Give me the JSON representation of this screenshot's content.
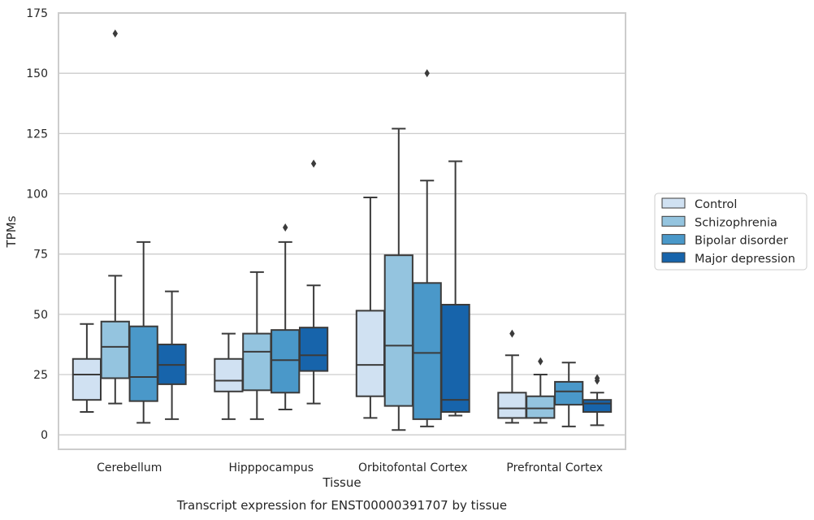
{
  "chart_data": {
    "type": "boxplot",
    "title": "Transcript expression for ENST00000391707 by tissue",
    "xlabel": "Tissue",
    "ylabel": "TPMs",
    "ylim": [
      -6,
      175
    ],
    "yticks": [
      0,
      25,
      50,
      75,
      100,
      125,
      150,
      175
    ],
    "categories": [
      "Cerebellum",
      "Hipppocampus",
      "Orbitofontal Cortex",
      "Prefrontal Cortex"
    ],
    "grid": "horizontal",
    "legend_position": "right",
    "colors": {
      "series": [
        "#d0e1f2",
        "#94c4df",
        "#4a98c9",
        "#1764ab"
      ],
      "edge": "#3b3b3b",
      "grid": "#cccccc",
      "frame": "#cccccc"
    },
    "series": [
      {
        "name": "Control",
        "boxes": [
          {
            "whislo": 9.5,
            "q1": 14.5,
            "med": 25,
            "q3": 31.5,
            "whishi": 46,
            "fliers": []
          },
          {
            "whislo": 6.5,
            "q1": 18,
            "med": 22.5,
            "q3": 31.5,
            "whishi": 42,
            "fliers": []
          },
          {
            "whislo": 7,
            "q1": 16,
            "med": 29,
            "q3": 51.5,
            "whishi": 98.5,
            "fliers": []
          },
          {
            "whislo": 5,
            "q1": 7,
            "med": 11,
            "q3": 17.5,
            "whishi": 33,
            "fliers": [
              42
            ]
          }
        ]
      },
      {
        "name": "Schizophrenia",
        "boxes": [
          {
            "whislo": 13,
            "q1": 23.5,
            "med": 36.5,
            "q3": 47,
            "whishi": 66,
            "fliers": [
              166.5
            ]
          },
          {
            "whislo": 6.5,
            "q1": 18.5,
            "med": 34.5,
            "q3": 42,
            "whishi": 67.5,
            "fliers": []
          },
          {
            "whislo": 2,
            "q1": 12,
            "med": 37,
            "q3": 74.5,
            "whishi": 127,
            "fliers": []
          },
          {
            "whislo": 5,
            "q1": 7,
            "med": 11,
            "q3": 16,
            "whishi": 25,
            "fliers": [
              30.5
            ]
          }
        ]
      },
      {
        "name": "Bipolar disorder",
        "boxes": [
          {
            "whislo": 5,
            "q1": 14,
            "med": 24,
            "q3": 45,
            "whishi": 80,
            "fliers": []
          },
          {
            "whislo": 10.5,
            "q1": 17.5,
            "med": 31,
            "q3": 43.5,
            "whishi": 80,
            "fliers": [
              86
            ]
          },
          {
            "whislo": 3.5,
            "q1": 6.5,
            "med": 34,
            "q3": 63,
            "whishi": 105.5,
            "fliers": [
              150
            ]
          },
          {
            "whislo": 3.5,
            "q1": 12.5,
            "med": 18,
            "q3": 22,
            "whishi": 30,
            "fliers": []
          }
        ]
      },
      {
        "name": "Major depression",
        "boxes": [
          {
            "whislo": 6.5,
            "q1": 21,
            "med": 29,
            "q3": 37.5,
            "whishi": 59.5,
            "fliers": []
          },
          {
            "whislo": 13,
            "q1": 26.5,
            "med": 33,
            "q3": 44.5,
            "whishi": 62,
            "fliers": [
              112.5
            ]
          },
          {
            "whislo": 8,
            "q1": 9.5,
            "med": 14.5,
            "q3": 54,
            "whishi": 113.5,
            "fliers": []
          },
          {
            "whislo": 4,
            "q1": 9.5,
            "med": 13,
            "q3": 14.5,
            "whishi": 17.5,
            "fliers": [
              22.5,
              23.5
            ]
          }
        ]
      }
    ]
  }
}
